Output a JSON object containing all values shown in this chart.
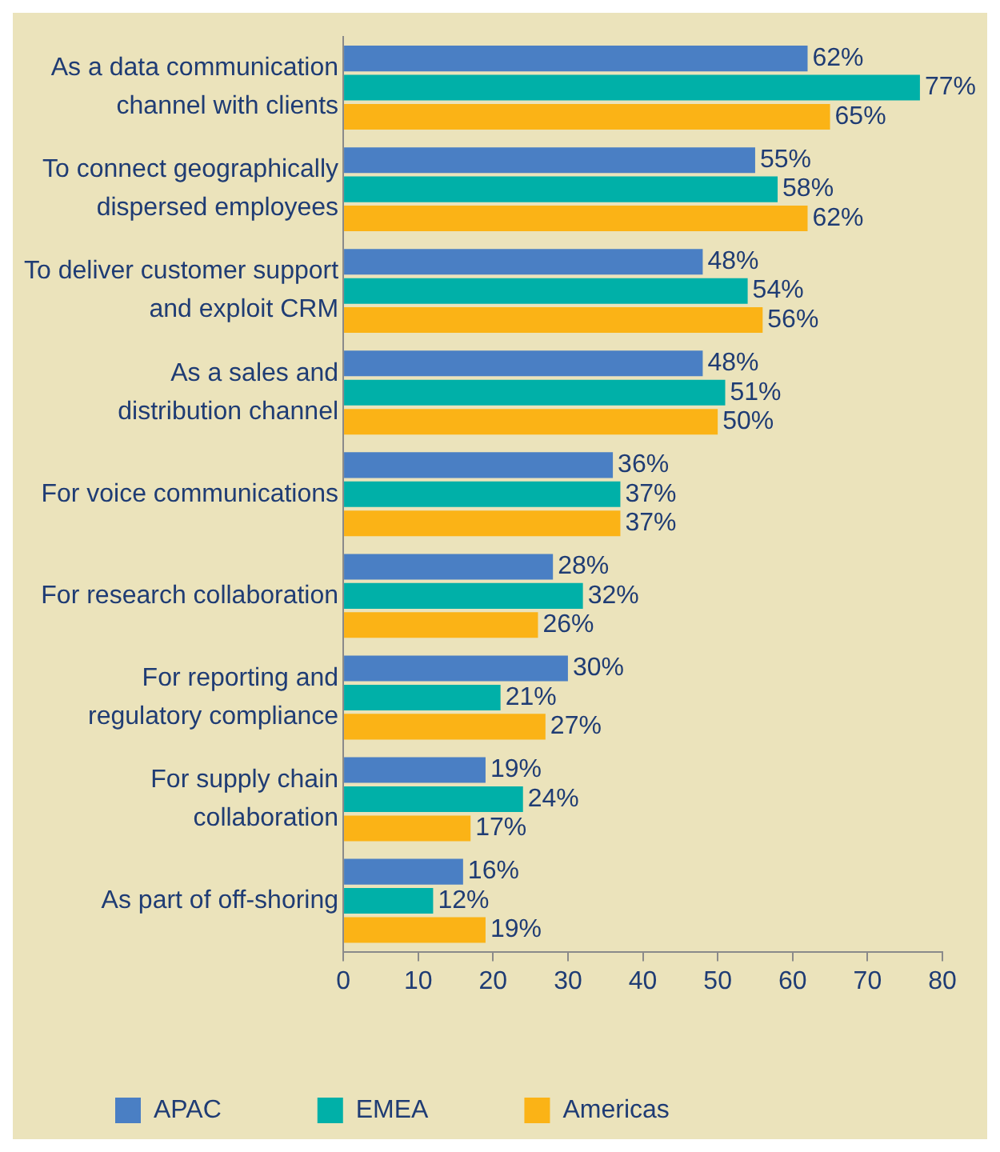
{
  "chart_data": {
    "type": "bar",
    "orientation": "horizontal",
    "categories": [
      "As a data communication\nchannel with clients",
      "To connect geographically\ndispersed employees",
      "To deliver customer support\nand exploit CRM",
      "As a sales and\ndistribution channel",
      "For voice communications",
      "For research collaboration",
      "For reporting and\nregulatory compliance",
      "For supply chain\ncollaboration",
      "As part of off-shoring"
    ],
    "series": [
      {
        "name": "APAC",
        "color": "#4a7fc4",
        "values": [
          62,
          55,
          48,
          48,
          36,
          28,
          30,
          19,
          16
        ]
      },
      {
        "name": "EMEA",
        "color": "#00b0a8",
        "values": [
          77,
          58,
          54,
          51,
          37,
          32,
          21,
          24,
          12
        ]
      },
      {
        "name": "Americas",
        "color": "#fbb316",
        "values": [
          65,
          62,
          56,
          50,
          37,
          26,
          27,
          17,
          19
        ]
      }
    ],
    "value_labels": [
      [
        "62%",
        "55%",
        "48%",
        "48%",
        "36%",
        "28%",
        "30%",
        "19%",
        "16%"
      ],
      [
        "77%",
        "58%",
        "54%",
        "51%",
        "37%",
        "32%",
        "21%",
        "24%",
        "12%"
      ],
      [
        "65%",
        "62%",
        "56%",
        "50%",
        "37%",
        "26%",
        "27%",
        "17%",
        "19%"
      ]
    ],
    "xlim": [
      0,
      80
    ],
    "xticks": [
      0,
      10,
      20,
      30,
      40,
      50,
      60,
      70,
      80
    ],
    "grid": false,
    "legend": "bottom"
  }
}
